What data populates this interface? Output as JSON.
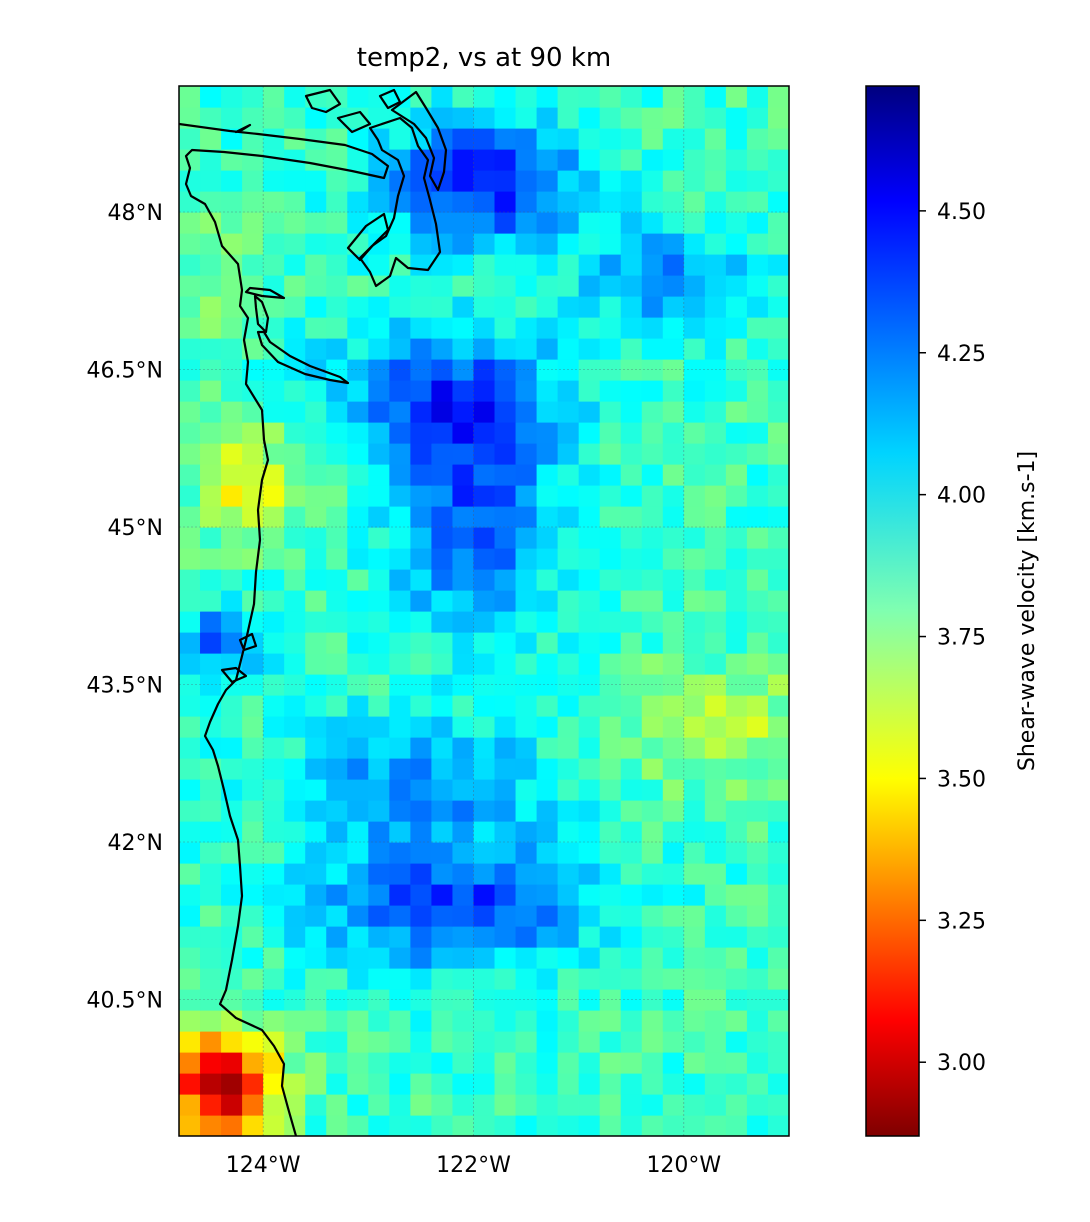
{
  "title": "temp2, vs at 90 km",
  "map": {
    "type": "heatmap-map",
    "lon_range": [
      -124.8,
      -119.0
    ],
    "lat_range": [
      39.2,
      49.2
    ],
    "lat_ticks": [
      {
        "value": 48.0,
        "label": "48°N"
      },
      {
        "value": 46.5,
        "label": "46.5°N"
      },
      {
        "value": 45.0,
        "label": "45°N"
      },
      {
        "value": 43.5,
        "label": "43.5°N"
      },
      {
        "value": 42.0,
        "label": "42°N"
      },
      {
        "value": 40.5,
        "label": "40.5°N"
      }
    ],
    "lon_ticks": [
      {
        "value": -124,
        "label": "124°W"
      },
      {
        "value": -122,
        "label": "122°W"
      },
      {
        "value": -120,
        "label": "120°W"
      }
    ],
    "grid": true,
    "coastline": true
  },
  "colorbar": {
    "label": "Shear-wave velocity [km.s-1]",
    "range": [
      2.87,
      4.72
    ],
    "colormap": "jet",
    "ticks": [
      {
        "value": 3.0,
        "label": "3.00"
      },
      {
        "value": 3.25,
        "label": "3.25"
      },
      {
        "value": 3.5,
        "label": "3.50"
      },
      {
        "value": 3.75,
        "label": "3.75"
      },
      {
        "value": 4.0,
        "label": "4.00"
      },
      {
        "value": 4.25,
        "label": "4.25"
      },
      {
        "value": 4.5,
        "label": "4.50"
      }
    ]
  }
}
